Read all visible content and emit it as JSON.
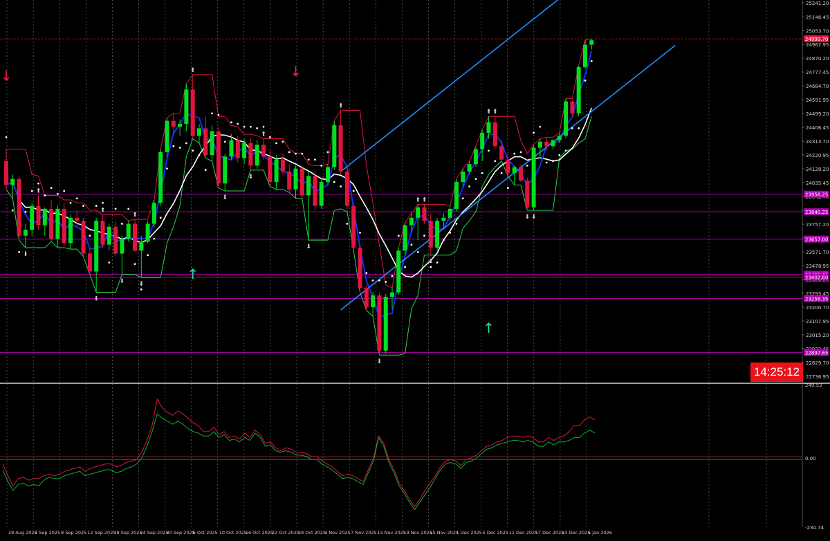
{
  "colors": {
    "background": "#000000",
    "bull": "#00e020",
    "bear": "#e0163f",
    "blue_ma": "#1030ff",
    "white_ma": "#ffffff",
    "red_ma": "#e0163f",
    "green_ma": "#30d050",
    "channel": "#1e90ff",
    "level": "#b000b0",
    "grid": "#7a7a7a",
    "osc_red": "#e01640",
    "osc_green": "#10b030",
    "timer_bg": "#e8141b"
  },
  "countdown": "14:25:12",
  "chart_data": [
    {
      "type": "candlestick",
      "title": "",
      "y_ticks": [
        "25241.20",
        "25146.45",
        "25053.70",
        "24962.95",
        "24870.20",
        "24777.45",
        "24684.70",
        "24591.95",
        "24499.20",
        "24406.45",
        "24313.70",
        "24220.95",
        "24128.20",
        "24035.45",
        "23942.70",
        "23849.95",
        "23757.20",
        "23664.45",
        "23571.70",
        "23478.95",
        "23386.20",
        "23293.45",
        "23200.70",
        "23107.95",
        "23015.20",
        "22922.45",
        "22829.70",
        "22736.95"
      ],
      "y_range": [
        22700,
        25260
      ],
      "x_labels": [
        "29 Aug 2025",
        "2 Sep 2025",
        "8 Sep 2025",
        "12 Sep 2025",
        "18 Sep 2025",
        "24 Sep 2025",
        "30 Sep 2025",
        "6 Oct 2025",
        "10 Oct 2025",
        "16 Oct 2025",
        "22 Oct 2025",
        "28 Oct 2025",
        "3 Nov 2025",
        "7 Nov 2025",
        "13 Nov 2025",
        "19 Nov 2025",
        "25 Nov 2025",
        "1 Dec 2025",
        "5 Dec 2025",
        "11 Dec 2025",
        "17 Dec 2025",
        "23 Dec 2025",
        "5 Jan 2026"
      ],
      "price_tags": [
        {
          "label": "24999.70",
          "value": 24999.7,
          "color": "#e0163f"
        },
        {
          "label": "23958.25",
          "value": 23958.25,
          "color": "#b000b0"
        },
        {
          "label": "23840.25",
          "value": 23840.25,
          "color": "#b000b0"
        },
        {
          "label": "23657.00",
          "value": 23657.0,
          "color": "#b000b0"
        },
        {
          "label": "23421.65",
          "value": 23421.65,
          "color": "#b000b0"
        },
        {
          "label": "23402.60",
          "value": 23402.6,
          "color": "#b000b0"
        },
        {
          "label": "23258.35",
          "value": 23258.35,
          "color": "#b000b0"
        },
        {
          "label": "22897.65",
          "value": 22897.65,
          "color": "#b000b0"
        }
      ],
      "horizontal_levels": [
        23958.25,
        23840.25,
        23657.0,
        23421.65,
        23402.6,
        23258.35,
        22897.65
      ],
      "candles": [
        {
          "o": 24180,
          "h": 24260,
          "l": 23990,
          "c": 24020
        },
        {
          "o": 24020,
          "h": 24090,
          "l": 23930,
          "c": 24060
        },
        {
          "o": 24060,
          "h": 24080,
          "l": 23650,
          "c": 23680
        },
        {
          "o": 23680,
          "h": 23760,
          "l": 23600,
          "c": 23720
        },
        {
          "o": 23720,
          "h": 23900,
          "l": 23680,
          "c": 23880
        },
        {
          "o": 23880,
          "h": 23950,
          "l": 23720,
          "c": 23750
        },
        {
          "o": 23750,
          "h": 23870,
          "l": 23680,
          "c": 23860
        },
        {
          "o": 23860,
          "h": 23920,
          "l": 23640,
          "c": 23660
        },
        {
          "o": 23660,
          "h": 23880,
          "l": 23600,
          "c": 23860
        },
        {
          "o": 23860,
          "h": 23900,
          "l": 23610,
          "c": 23630
        },
        {
          "o": 23630,
          "h": 23820,
          "l": 23590,
          "c": 23800
        },
        {
          "o": 23800,
          "h": 23850,
          "l": 23740,
          "c": 23780
        },
        {
          "o": 23780,
          "h": 23800,
          "l": 23540,
          "c": 23560
        },
        {
          "o": 23560,
          "h": 23600,
          "l": 23420,
          "c": 23440
        },
        {
          "o": 23440,
          "h": 23800,
          "l": 23300,
          "c": 23780
        },
        {
          "o": 23780,
          "h": 23820,
          "l": 23600,
          "c": 23620
        },
        {
          "o": 23620,
          "h": 23760,
          "l": 23580,
          "c": 23740
        },
        {
          "o": 23740,
          "h": 23780,
          "l": 23540,
          "c": 23560
        },
        {
          "o": 23560,
          "h": 23680,
          "l": 23420,
          "c": 23660
        },
        {
          "o": 23660,
          "h": 23780,
          "l": 23640,
          "c": 23760
        },
        {
          "o": 23760,
          "h": 23790,
          "l": 23570,
          "c": 23580
        },
        {
          "o": 23580,
          "h": 23680,
          "l": 23400,
          "c": 23640
        },
        {
          "o": 23640,
          "h": 23780,
          "l": 23630,
          "c": 23760
        },
        {
          "o": 23760,
          "h": 23920,
          "l": 23740,
          "c": 23900
        },
        {
          "o": 23900,
          "h": 24260,
          "l": 23880,
          "c": 24240
        },
        {
          "o": 24240,
          "h": 24470,
          "l": 24210,
          "c": 24450
        },
        {
          "o": 24450,
          "h": 24500,
          "l": 24360,
          "c": 24410
        },
        {
          "o": 24410,
          "h": 24460,
          "l": 24350,
          "c": 24430
        },
        {
          "o": 24430,
          "h": 24700,
          "l": 24380,
          "c": 24660
        },
        {
          "o": 24660,
          "h": 24760,
          "l": 24330,
          "c": 24350
        },
        {
          "o": 24350,
          "h": 24430,
          "l": 24300,
          "c": 24400
        },
        {
          "o": 24400,
          "h": 24480,
          "l": 24200,
          "c": 24220
        },
        {
          "o": 24220,
          "h": 24420,
          "l": 24180,
          "c": 24380
        },
        {
          "o": 24380,
          "h": 24410,
          "l": 24000,
          "c": 24030
        },
        {
          "o": 24030,
          "h": 24230,
          "l": 23980,
          "c": 24210
        },
        {
          "o": 24210,
          "h": 24360,
          "l": 24190,
          "c": 24320
        },
        {
          "o": 24320,
          "h": 24350,
          "l": 24170,
          "c": 24200
        },
        {
          "o": 24200,
          "h": 24330,
          "l": 24160,
          "c": 24300
        },
        {
          "o": 24300,
          "h": 24330,
          "l": 24120,
          "c": 24150
        },
        {
          "o": 24150,
          "h": 24320,
          "l": 24130,
          "c": 24290
        },
        {
          "o": 24290,
          "h": 24330,
          "l": 24190,
          "c": 24210
        },
        {
          "o": 24210,
          "h": 24260,
          "l": 24010,
          "c": 24040
        },
        {
          "o": 24040,
          "h": 24220,
          "l": 23990,
          "c": 24190
        },
        {
          "o": 24190,
          "h": 24230,
          "l": 24090,
          "c": 24110
        },
        {
          "o": 24110,
          "h": 24160,
          "l": 23970,
          "c": 23990
        },
        {
          "o": 23990,
          "h": 24150,
          "l": 23930,
          "c": 24130
        },
        {
          "o": 24130,
          "h": 24150,
          "l": 23930,
          "c": 23950
        },
        {
          "o": 23950,
          "h": 24110,
          "l": 23650,
          "c": 24080
        },
        {
          "o": 24080,
          "h": 24110,
          "l": 23850,
          "c": 23880
        },
        {
          "o": 23880,
          "h": 24070,
          "l": 23860,
          "c": 24040
        },
        {
          "o": 24040,
          "h": 24160,
          "l": 24020,
          "c": 24140
        },
        {
          "o": 24140,
          "h": 24450,
          "l": 24120,
          "c": 24420
        },
        {
          "o": 24420,
          "h": 24520,
          "l": 24090,
          "c": 24110
        },
        {
          "o": 24110,
          "h": 24150,
          "l": 23840,
          "c": 23880
        },
        {
          "o": 23880,
          "h": 23900,
          "l": 23580,
          "c": 23600
        },
        {
          "o": 23600,
          "h": 23620,
          "l": 23300,
          "c": 23330
        },
        {
          "o": 23330,
          "h": 23350,
          "l": 23180,
          "c": 23200
        },
        {
          "o": 23200,
          "h": 23300,
          "l": 23140,
          "c": 23280
        },
        {
          "o": 23280,
          "h": 23300,
          "l": 22880,
          "c": 22910
        },
        {
          "o": 22910,
          "h": 23290,
          "l": 22890,
          "c": 23270
        },
        {
          "o": 23270,
          "h": 23330,
          "l": 23190,
          "c": 23300
        },
        {
          "o": 23300,
          "h": 23600,
          "l": 23280,
          "c": 23580
        },
        {
          "o": 23580,
          "h": 23770,
          "l": 23550,
          "c": 23750
        },
        {
          "o": 23750,
          "h": 23830,
          "l": 23700,
          "c": 23800
        },
        {
          "o": 23800,
          "h": 23890,
          "l": 23650,
          "c": 23870
        },
        {
          "o": 23870,
          "h": 23890,
          "l": 23760,
          "c": 23780
        },
        {
          "o": 23780,
          "h": 23830,
          "l": 23550,
          "c": 23600
        },
        {
          "o": 23600,
          "h": 23800,
          "l": 23580,
          "c": 23780
        },
        {
          "o": 23780,
          "h": 23830,
          "l": 23730,
          "c": 23800
        },
        {
          "o": 23800,
          "h": 23880,
          "l": 23780,
          "c": 23860
        },
        {
          "o": 23860,
          "h": 24060,
          "l": 23840,
          "c": 24040
        },
        {
          "o": 24040,
          "h": 24130,
          "l": 24010,
          "c": 24110
        },
        {
          "o": 24110,
          "h": 24180,
          "l": 24090,
          "c": 24160
        },
        {
          "o": 24160,
          "h": 24280,
          "l": 24140,
          "c": 24260
        },
        {
          "o": 24260,
          "h": 24390,
          "l": 24180,
          "c": 24370
        },
        {
          "o": 24370,
          "h": 24480,
          "l": 24330,
          "c": 24440
        },
        {
          "o": 24440,
          "h": 24480,
          "l": 24260,
          "c": 24280
        },
        {
          "o": 24280,
          "h": 24320,
          "l": 24180,
          "c": 24190
        },
        {
          "o": 24190,
          "h": 24230,
          "l": 24080,
          "c": 24100
        },
        {
          "o": 24100,
          "h": 24150,
          "l": 24020,
          "c": 24140
        },
        {
          "o": 24140,
          "h": 24160,
          "l": 24040,
          "c": 24050
        },
        {
          "o": 24050,
          "h": 24070,
          "l": 23850,
          "c": 23870
        },
        {
          "o": 23870,
          "h": 24290,
          "l": 23850,
          "c": 24270
        },
        {
          "o": 24270,
          "h": 24330,
          "l": 24200,
          "c": 24310
        },
        {
          "o": 24310,
          "h": 24340,
          "l": 24250,
          "c": 24280
        },
        {
          "o": 24280,
          "h": 24330,
          "l": 24260,
          "c": 24320
        },
        {
          "o": 24320,
          "h": 24370,
          "l": 24300,
          "c": 24350
        },
        {
          "o": 24350,
          "h": 24600,
          "l": 24330,
          "c": 24580
        },
        {
          "o": 24580,
          "h": 24590,
          "l": 24480,
          "c": 24500
        },
        {
          "o": 24500,
          "h": 24820,
          "l": 24480,
          "c": 24810
        },
        {
          "o": 24810,
          "h": 24990,
          "l": 24800,
          "c": 24960
        },
        {
          "o": 24960,
          "h": 25000,
          "l": 24930,
          "c": 24990
        }
      ],
      "indicators": [
        "blue MA",
        "white MA",
        "red envelope",
        "green envelope",
        "parabolic SAR",
        "fractals",
        "linear regression channel"
      ],
      "arrows": [
        {
          "bar": 0,
          "dir": "down",
          "value": 24720
        },
        {
          "bar": 29,
          "dir": "up",
          "value": 23390
        },
        {
          "bar": 45,
          "dir": "down",
          "value": 24750
        },
        {
          "bar": 75,
          "dir": "up",
          "value": 23030
        }
      ]
    },
    {
      "type": "line",
      "title": "",
      "y_ticks": [
        "249.53",
        "0.00",
        "-234.74"
      ],
      "y_range": [
        -234.74,
        249.53
      ],
      "zero_line": 0,
      "series": [
        {
          "values": [
            -20,
            -60,
            -95,
            -70,
            -65,
            -75,
            -70,
            -70,
            -60,
            -55,
            -60,
            -55,
            -45,
            -40,
            -35,
            -30,
            -45,
            -35,
            -30,
            -25,
            -20,
            -20,
            -30,
            -25,
            -15,
            -10,
            -5,
            20,
            60,
            110,
            200,
            170,
            155,
            145,
            160,
            150,
            135,
            120,
            110,
            90,
            90,
            105,
            80,
            90,
            70,
            75,
            65,
            85,
            70,
            95,
            80,
            50,
            55,
            35,
            25,
            35,
            30,
            20,
            20,
            15,
            5,
            5,
            -10,
            -20,
            -30,
            -45,
            -60,
            -55,
            -60,
            -70,
            -80,
            -40,
            0,
            75,
            50,
            -5,
            -40,
            -85,
            -110,
            -140,
            -165,
            -140,
            -110,
            -85,
            -60,
            -30,
            -10,
            -5,
            -10,
            -25,
            -5,
            0,
            10,
            25,
            40,
            45,
            55,
            60,
            70,
            75,
            75,
            70,
            75,
            70,
            55,
            55,
            70,
            60,
            70,
            75,
            90,
            110,
            110,
            130,
            140,
            130
          ]
        },
        {
          "values": [
            -40,
            -80,
            -110,
            -90,
            -85,
            -95,
            -90,
            -95,
            -75,
            -65,
            -70,
            -70,
            -60,
            -55,
            -50,
            -45,
            -60,
            -55,
            -50,
            -45,
            -40,
            -40,
            -50,
            -45,
            -35,
            -30,
            -20,
            0,
            40,
            90,
            150,
            135,
            125,
            115,
            125,
            115,
            100,
            90,
            85,
            75,
            75,
            90,
            70,
            80,
            60,
            65,
            55,
            70,
            60,
            85,
            70,
            40,
            45,
            25,
            20,
            25,
            20,
            10,
            10,
            5,
            -5,
            -5,
            -20,
            -30,
            -40,
            -55,
            -70,
            -65,
            -70,
            -80,
            -90,
            -50,
            -10,
            70,
            40,
            -15,
            -50,
            -95,
            -120,
            -150,
            -175,
            -150,
            -125,
            -100,
            -70,
            -40,
            -20,
            -15,
            -20,
            -35,
            -15,
            -10,
            0,
            15,
            30,
            35,
            45,
            50,
            55,
            60,
            60,
            55,
            60,
            55,
            40,
            40,
            55,
            45,
            55,
            55,
            60,
            70,
            70,
            85,
            95,
            85
          ]
        }
      ]
    }
  ]
}
